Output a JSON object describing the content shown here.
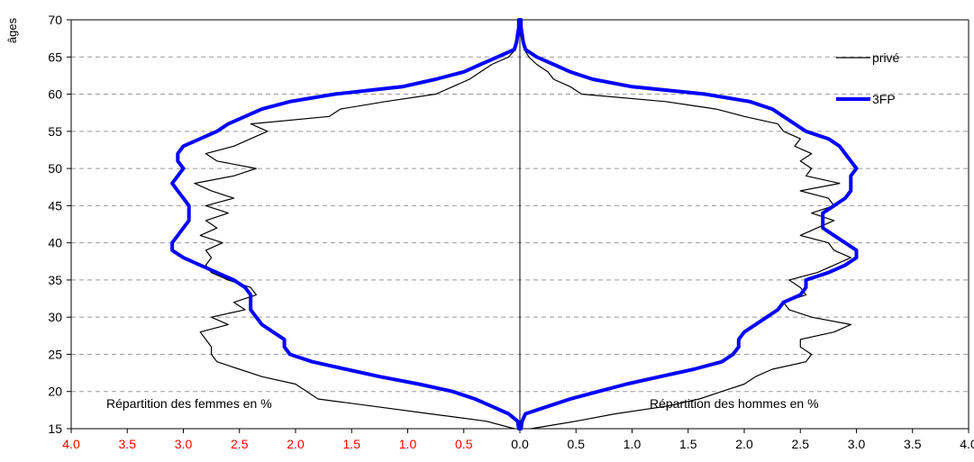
{
  "chart_data": {
    "type": "line",
    "subtype": "population pyramid",
    "ylabel": "âges",
    "ylim": [
      15,
      70
    ],
    "y_ticks": [
      "15",
      "20",
      "25",
      "30",
      "35",
      "40",
      "45",
      "50",
      "55",
      "60",
      "65",
      "70"
    ],
    "xlim_left": [
      4.0,
      0.0
    ],
    "xlim_right": [
      0.0,
      4.0
    ],
    "x_ticks_left": [
      "4.0",
      "3.5",
      "3.0",
      "2.5",
      "2.0",
      "1.5",
      "1.0",
      "0.5"
    ],
    "x_ticks_right": [
      "0.0",
      "0.5",
      "1.0",
      "1.5",
      "2.0",
      "2.5",
      "3.0",
      "3.5",
      "4.0"
    ],
    "left_tick_color": "#ff0000",
    "right_tick_color": "#000000",
    "grid": "horizontal dashed",
    "annotations": {
      "left": "Répartition des femmes en %",
      "right": "Répartition des hommes en %"
    },
    "legend_position": "top-right",
    "series": [
      {
        "name": "privé",
        "color": "#000000",
        "width": "thin",
        "women": [
          [
            15,
            0.05
          ],
          [
            16,
            0.3
          ],
          [
            17,
            0.8
          ],
          [
            18,
            1.3
          ],
          [
            19,
            1.8
          ],
          [
            20,
            1.9
          ],
          [
            21,
            2.0
          ],
          [
            22,
            2.3
          ],
          [
            23,
            2.5
          ],
          [
            24,
            2.7
          ],
          [
            25,
            2.75
          ],
          [
            26,
            2.75
          ],
          [
            27,
            2.8
          ],
          [
            28,
            2.85
          ],
          [
            29,
            2.6
          ],
          [
            30,
            2.75
          ],
          [
            31,
            2.45
          ],
          [
            32,
            2.55
          ],
          [
            33,
            2.35
          ],
          [
            34,
            2.4
          ],
          [
            35,
            2.6
          ],
          [
            36,
            2.75
          ],
          [
            37,
            2.8
          ],
          [
            38,
            2.75
          ],
          [
            39,
            2.8
          ],
          [
            40,
            2.65
          ],
          [
            41,
            2.85
          ],
          [
            42,
            2.7
          ],
          [
            43,
            2.8
          ],
          [
            44,
            2.6
          ],
          [
            45,
            2.8
          ],
          [
            46,
            2.55
          ],
          [
            47,
            2.75
          ],
          [
            48,
            2.9
          ],
          [
            49,
            2.55
          ],
          [
            50,
            2.35
          ],
          [
            51,
            2.7
          ],
          [
            52,
            2.8
          ],
          [
            53,
            2.55
          ],
          [
            54,
            2.4
          ],
          [
            55,
            2.25
          ],
          [
            56,
            2.4
          ],
          [
            57,
            1.7
          ],
          [
            58,
            1.6
          ],
          [
            59,
            1.2
          ],
          [
            60,
            0.75
          ],
          [
            61,
            0.6
          ],
          [
            62,
            0.45
          ],
          [
            63,
            0.35
          ],
          [
            64,
            0.25
          ],
          [
            65,
            0.1
          ],
          [
            66,
            0.04
          ],
          [
            67,
            0.03
          ],
          [
            68,
            0.02
          ],
          [
            69,
            0.01
          ],
          [
            70,
            0.01
          ]
        ],
        "men": [
          [
            15,
            0.1
          ],
          [
            16,
            0.5
          ],
          [
            17,
            0.85
          ],
          [
            18,
            1.3
          ],
          [
            19,
            1.6
          ],
          [
            20,
            1.8
          ],
          [
            21,
            2.0
          ],
          [
            22,
            2.1
          ],
          [
            23,
            2.25
          ],
          [
            24,
            2.55
          ],
          [
            25,
            2.6
          ],
          [
            26,
            2.5
          ],
          [
            27,
            2.5
          ],
          [
            28,
            2.8
          ],
          [
            29,
            2.95
          ],
          [
            30,
            2.6
          ],
          [
            31,
            2.4
          ],
          [
            32,
            2.35
          ],
          [
            33,
            2.55
          ],
          [
            34,
            2.5
          ],
          [
            35,
            2.4
          ],
          [
            36,
            2.65
          ],
          [
            37,
            2.8
          ],
          [
            38,
            2.95
          ],
          [
            39,
            2.8
          ],
          [
            40,
            2.75
          ],
          [
            41,
            2.5
          ],
          [
            42,
            2.65
          ],
          [
            43,
            2.8
          ],
          [
            44,
            2.6
          ],
          [
            45,
            2.8
          ],
          [
            46,
            2.75
          ],
          [
            47,
            2.5
          ],
          [
            48,
            2.85
          ],
          [
            49,
            2.55
          ],
          [
            50,
            2.6
          ],
          [
            51,
            2.5
          ],
          [
            52,
            2.6
          ],
          [
            53,
            2.45
          ],
          [
            54,
            2.5
          ],
          [
            55,
            2.35
          ],
          [
            56,
            2.3
          ],
          [
            57,
            2.0
          ],
          [
            58,
            1.75
          ],
          [
            59,
            1.3
          ],
          [
            60,
            0.55
          ],
          [
            61,
            0.45
          ],
          [
            62,
            0.3
          ],
          [
            63,
            0.25
          ],
          [
            64,
            0.15
          ],
          [
            65,
            0.08
          ],
          [
            66,
            0.04
          ],
          [
            67,
            0.03
          ],
          [
            68,
            0.02
          ],
          [
            69,
            0.01
          ],
          [
            70,
            0.01
          ]
        ]
      },
      {
        "name": "3FP",
        "color": "#0000ff",
        "width": "thick",
        "women": [
          [
            15,
            0.01
          ],
          [
            16,
            0.02
          ],
          [
            17,
            0.1
          ],
          [
            18,
            0.25
          ],
          [
            19,
            0.4
          ],
          [
            20,
            0.6
          ],
          [
            21,
            0.9
          ],
          [
            22,
            1.25
          ],
          [
            23,
            1.55
          ],
          [
            24,
            1.85
          ],
          [
            25,
            2.05
          ],
          [
            26,
            2.1
          ],
          [
            27,
            2.1
          ],
          [
            28,
            2.2
          ],
          [
            29,
            2.3
          ],
          [
            30,
            2.35
          ],
          [
            31,
            2.4
          ],
          [
            32,
            2.4
          ],
          [
            33,
            2.4
          ],
          [
            34,
            2.45
          ],
          [
            35,
            2.55
          ],
          [
            36,
            2.7
          ],
          [
            37,
            2.85
          ],
          [
            38,
            3.0
          ],
          [
            39,
            3.1
          ],
          [
            40,
            3.1
          ],
          [
            41,
            3.05
          ],
          [
            42,
            3.0
          ],
          [
            43,
            2.95
          ],
          [
            44,
            2.95
          ],
          [
            45,
            2.95
          ],
          [
            46,
            3.0
          ],
          [
            47,
            3.05
          ],
          [
            48,
            3.1
          ],
          [
            49,
            3.05
          ],
          [
            50,
            3.0
          ],
          [
            51,
            3.05
          ],
          [
            52,
            3.05
          ],
          [
            53,
            3.0
          ],
          [
            54,
            2.85
          ],
          [
            55,
            2.7
          ],
          [
            56,
            2.6
          ],
          [
            57,
            2.45
          ],
          [
            58,
            2.3
          ],
          [
            59,
            2.05
          ],
          [
            60,
            1.65
          ],
          [
            61,
            1.05
          ],
          [
            62,
            0.75
          ],
          [
            63,
            0.5
          ],
          [
            64,
            0.35
          ],
          [
            65,
            0.2
          ],
          [
            66,
            0.05
          ],
          [
            67,
            0.03
          ],
          [
            68,
            0.02
          ],
          [
            69,
            0.01
          ],
          [
            70,
            0.01
          ]
        ],
        "men": [
          [
            15,
            0.01
          ],
          [
            16,
            0.02
          ],
          [
            17,
            0.05
          ],
          [
            18,
            0.25
          ],
          [
            19,
            0.45
          ],
          [
            20,
            0.7
          ],
          [
            21,
            0.95
          ],
          [
            22,
            1.25
          ],
          [
            23,
            1.55
          ],
          [
            24,
            1.8
          ],
          [
            25,
            1.9
          ],
          [
            26,
            1.95
          ],
          [
            27,
            1.95
          ],
          [
            28,
            2.0
          ],
          [
            29,
            2.1
          ],
          [
            30,
            2.2
          ],
          [
            31,
            2.3
          ],
          [
            32,
            2.35
          ],
          [
            33,
            2.5
          ],
          [
            34,
            2.55
          ],
          [
            35,
            2.55
          ],
          [
            36,
            2.75
          ],
          [
            37,
            2.9
          ],
          [
            38,
            3.0
          ],
          [
            39,
            3.0
          ],
          [
            40,
            2.9
          ],
          [
            41,
            2.8
          ],
          [
            42,
            2.7
          ],
          [
            43,
            2.7
          ],
          [
            44,
            2.7
          ],
          [
            45,
            2.8
          ],
          [
            46,
            2.9
          ],
          [
            47,
            2.95
          ],
          [
            48,
            2.95
          ],
          [
            49,
            2.95
          ],
          [
            50,
            3.0
          ],
          [
            51,
            2.95
          ],
          [
            52,
            2.9
          ],
          [
            53,
            2.85
          ],
          [
            54,
            2.75
          ],
          [
            55,
            2.55
          ],
          [
            56,
            2.45
          ],
          [
            57,
            2.35
          ],
          [
            58,
            2.25
          ],
          [
            59,
            2.05
          ],
          [
            60,
            1.65
          ],
          [
            61,
            1.0
          ],
          [
            62,
            0.65
          ],
          [
            63,
            0.45
          ],
          [
            64,
            0.3
          ],
          [
            65,
            0.15
          ],
          [
            66,
            0.05
          ],
          [
            67,
            0.03
          ],
          [
            68,
            0.02
          ],
          [
            69,
            0.01
          ],
          [
            70,
            0.01
          ]
        ]
      }
    ]
  }
}
